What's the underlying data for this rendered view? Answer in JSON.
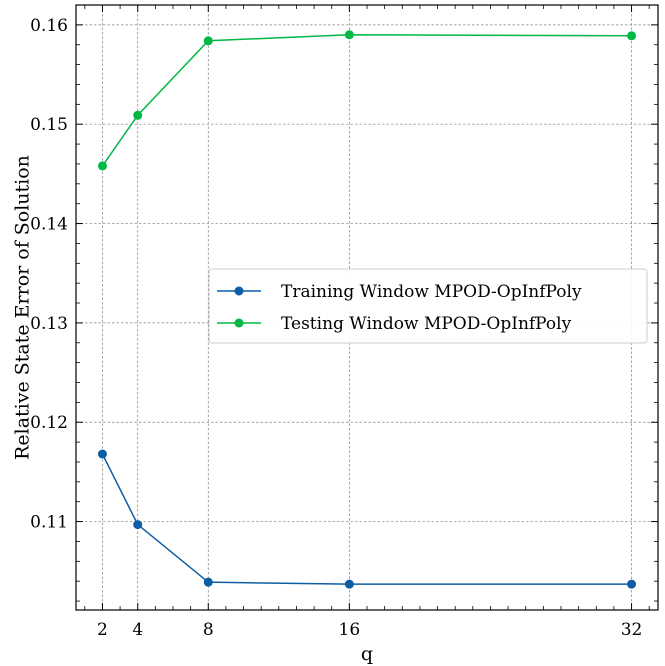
{
  "chart_data": {
    "type": "line",
    "title": "",
    "xlabel": "q",
    "ylabel": "Relative State Error of Solution",
    "x": [
      2,
      4,
      8,
      16,
      32
    ],
    "x_ticks": [
      2,
      4,
      8,
      16,
      32
    ],
    "x_tick_labels": [
      "2",
      "4",
      "8",
      "16",
      "32"
    ],
    "xlim": [
      0.5,
      33.5
    ],
    "ylim": [
      0.1011,
      0.162
    ],
    "y_ticks": [
      0.11,
      0.12,
      0.13,
      0.14,
      0.15,
      0.16
    ],
    "y_tick_labels": [
      "0.11",
      "0.12",
      "0.13",
      "0.14",
      "0.15",
      "0.16"
    ],
    "grid": true,
    "legend_position": "center-right",
    "series": [
      {
        "name": "Training Window MPOD-OpInfPoly",
        "color": "#0C5DA5",
        "values": [
          0.1168,
          0.1097,
          0.1039,
          0.1037,
          0.1037
        ]
      },
      {
        "name": "Testing Window MPOD-OpInfPoly",
        "color": "#00B945",
        "values": [
          0.1458,
          0.1509,
          0.1584,
          0.159,
          0.1589
        ]
      }
    ]
  }
}
